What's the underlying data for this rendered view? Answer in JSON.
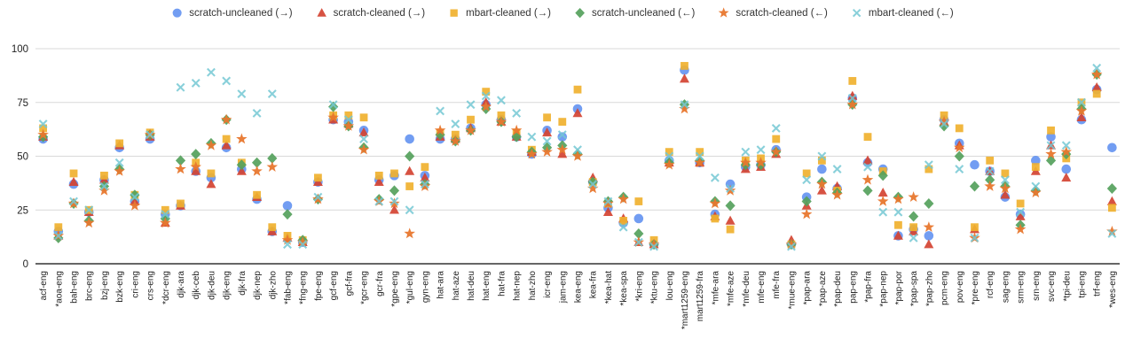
{
  "chart_data": {
    "type": "scatter",
    "title": "",
    "xlabel": "",
    "ylabel": "",
    "ylim": [
      0,
      100
    ],
    "y_ticks": [
      0,
      25,
      50,
      75,
      100
    ],
    "grid": true,
    "legend_position": "top-center",
    "axis_color": "#333333",
    "gridline_color": "#d9d9d9",
    "tick_label_color": "#222222",
    "categories": [
      "acf-eng",
      "*aoa-eng",
      "bah-eng",
      "brc-eng",
      "bzj-eng",
      "bzk-eng",
      "cri-eng",
      "crs-eng",
      "*dcr-eng",
      "djk-ara",
      "djk-ceb",
      "djk-deu",
      "djk-eng",
      "djk-fra",
      "djk-nep",
      "djk-zho",
      "*fab-eng",
      "*fng-eng",
      "fpe-eng",
      "gcf-eng",
      "gcf-fra",
      "*gcr-eng",
      "gcr-fra",
      "*gpe-eng",
      "*gul-eng",
      "gyn-eng",
      "hat-ara",
      "hat-aze",
      "hat-deu",
      "hat-eng",
      "hat-fra",
      "hat-nep",
      "hat-zho",
      "icr-eng",
      "jam-eng",
      "kea-eng",
      "kea-fra",
      "*kea-hat",
      "*kea-spa",
      "*kri-eng",
      "*ktu-eng",
      "lou-eng",
      "*mart1259-eng",
      "mart1259-fra",
      "*mfe-ara",
      "*mfe-aze",
      "*mfe-deu",
      "mfe-eng",
      "mfe-fra",
      "*mue-eng",
      "*pap-ara",
      "*pap-aze",
      "*pap-deu",
      "pap-eng",
      "*pap-fra",
      "*pap-nep",
      "*pap-por",
      "*pap-spa",
      "*pap-zho",
      "pcm-eng",
      "pov-eng",
      "*pre-eng",
      "rcf-eng",
      "sag-eng",
      "srm-eng",
      "srn-eng",
      "svc-eng",
      "*tpi-deu",
      "tpi-eng",
      "trf-eng",
      "*wes-eng"
    ],
    "series": [
      {
        "name": "scratch-uncleaned (→)",
        "marker": "circle",
        "color": "#5e8ff0",
        "values": [
          58,
          15,
          37,
          24,
          39,
          54,
          29,
          58,
          23,
          27,
          43,
          40,
          54,
          44,
          30,
          15,
          27,
          10,
          38,
          67,
          66,
          62,
          39,
          41,
          58,
          41,
          58,
          58,
          63,
          74,
          67,
          59,
          51,
          62,
          59,
          72,
          38,
          26,
          19,
          21,
          9,
          48,
          90,
          47,
          23,
          37,
          45,
          46,
          53,
          9,
          31,
          44,
          35,
          77,
          47,
          44,
          13,
          16,
          13,
          67,
          56,
          46,
          43,
          31,
          23,
          48,
          59,
          44,
          67,
          81,
          54
        ]
      },
      {
        "name": "scratch-cleaned (→)",
        "marker": "triangle",
        "color": "#d44332",
        "values": [
          59,
          13,
          38,
          24,
          39,
          55,
          29,
          59,
          19,
          27,
          43,
          37,
          55,
          43,
          31,
          15,
          12,
          10,
          38,
          67,
          65,
          61,
          38,
          25,
          43,
          40,
          59,
          58,
          63,
          75,
          66,
          59,
          52,
          61,
          51,
          70,
          40,
          24,
          21,
          10,
          9,
          47,
          86,
          47,
          22,
          20,
          44,
          45,
          51,
          11,
          27,
          34,
          36,
          78,
          48,
          33,
          13,
          15,
          9,
          66,
          55,
          16,
          43,
          32,
          22,
          43,
          55,
          40,
          68,
          82,
          29
        ]
      },
      {
        "name": "mbart-cleaned (→)",
        "marker": "square",
        "color": "#f0b12f",
        "values": [
          63,
          17,
          42,
          25,
          41,
          56,
          32,
          61,
          25,
          28,
          47,
          42,
          58,
          47,
          32,
          17,
          13,
          11,
          40,
          69,
          69,
          68,
          41,
          42,
          36,
          45,
          61,
          60,
          67,
          80,
          69,
          61,
          53,
          68,
          66,
          81,
          38,
          28,
          20,
          29,
          11,
          52,
          92,
          52,
          21,
          16,
          48,
          49,
          58,
          9,
          42,
          48,
          34,
          85,
          59,
          43,
          18,
          17,
          44,
          69,
          63,
          17,
          48,
          42,
          28,
          45,
          62,
          49,
          75,
          79,
          26
        ]
      },
      {
        "name": "scratch-uncleaned (←)",
        "marker": "diamond",
        "color": "#55a15c",
        "values": [
          59,
          12,
          28,
          20,
          36,
          44,
          32,
          60,
          21,
          48,
          51,
          56,
          67,
          46,
          47,
          49,
          23,
          11,
          30,
          73,
          64,
          54,
          30,
          34,
          50,
          37,
          60,
          57,
          62,
          72,
          66,
          59,
          52,
          54,
          55,
          51,
          38,
          29,
          31,
          14,
          9,
          47,
          74,
          48,
          29,
          27,
          46,
          46,
          52,
          9,
          29,
          38,
          33,
          74,
          34,
          41,
          31,
          22,
          28,
          64,
          50,
          36,
          39,
          36,
          18,
          34,
          48,
          51,
          72,
          88,
          35
        ]
      },
      {
        "name": "scratch-cleaned (←)",
        "marker": "star",
        "color": "#e8772e",
        "values": [
          60,
          13,
          28,
          19,
          34,
          43,
          27,
          60,
          19,
          44,
          45,
          55,
          67,
          58,
          43,
          45,
          11,
          10,
          30,
          68,
          64,
          53,
          29,
          28,
          14,
          36,
          62,
          57,
          62,
          73,
          66,
          62,
          51,
          52,
          53,
          50,
          35,
          28,
          30,
          10,
          9,
          46,
          72,
          47,
          28,
          34,
          47,
          47,
          52,
          9,
          23,
          37,
          32,
          74,
          39,
          29,
          30,
          31,
          17,
          66,
          54,
          12,
          36,
          35,
          16,
          33,
          51,
          52,
          71,
          88,
          15
        ]
      },
      {
        "name": "mbart-cleaned (←)",
        "marker": "x",
        "color": "#74c8d4",
        "values": [
          65,
          13,
          29,
          25,
          36,
          47,
          31,
          60,
          23,
          82,
          84,
          89,
          85,
          79,
          70,
          79,
          9,
          9,
          31,
          74,
          67,
          58,
          29,
          29,
          25,
          37,
          71,
          65,
          74,
          78,
          76,
          70,
          59,
          57,
          60,
          53,
          37,
          29,
          17,
          10,
          8,
          50,
          74,
          50,
          40,
          35,
          52,
          53,
          63,
          8,
          39,
          50,
          44,
          77,
          45,
          24,
          24,
          12,
          46,
          65,
          44,
          12,
          43,
          39,
          24,
          36,
          55,
          55,
          75,
          91,
          14
        ]
      }
    ]
  },
  "y_axis_tick_labels": [
    "100",
    "75",
    "50",
    "25",
    "0"
  ]
}
